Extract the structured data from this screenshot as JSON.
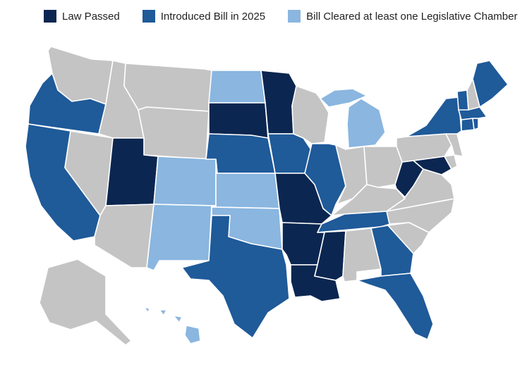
{
  "legend": [
    {
      "label": "Law Passed",
      "status": "law_passed"
    },
    {
      "label": "Introduced Bill in 2025",
      "status": "introduced"
    },
    {
      "label": "Bill Cleared at least one Legislative Chamber",
      "status": "cleared_chamber"
    }
  ],
  "colors": {
    "law_passed": "#0b2650",
    "introduced": "#1f5a99",
    "cleared_chamber": "#8ab6e0",
    "none": "#c4c4c4"
  },
  "states": [
    {
      "abbr": "WA",
      "status": "none"
    },
    {
      "abbr": "OR",
      "status": "introduced"
    },
    {
      "abbr": "CA",
      "status": "introduced"
    },
    {
      "abbr": "NV",
      "status": "none"
    },
    {
      "abbr": "ID",
      "status": "none"
    },
    {
      "abbr": "MT",
      "status": "none"
    },
    {
      "abbr": "WY",
      "status": "none"
    },
    {
      "abbr": "UT",
      "status": "law_passed"
    },
    {
      "abbr": "AZ",
      "status": "none"
    },
    {
      "abbr": "CO",
      "status": "cleared_chamber"
    },
    {
      "abbr": "NM",
      "status": "cleared_chamber"
    },
    {
      "abbr": "ND",
      "status": "cleared_chamber"
    },
    {
      "abbr": "SD",
      "status": "law_passed"
    },
    {
      "abbr": "NE",
      "status": "introduced"
    },
    {
      "abbr": "KS",
      "status": "cleared_chamber"
    },
    {
      "abbr": "OK",
      "status": "cleared_chamber"
    },
    {
      "abbr": "TX",
      "status": "introduced"
    },
    {
      "abbr": "MN",
      "status": "law_passed"
    },
    {
      "abbr": "IA",
      "status": "introduced"
    },
    {
      "abbr": "MO",
      "status": "law_passed"
    },
    {
      "abbr": "AR",
      "status": "law_passed"
    },
    {
      "abbr": "LA",
      "status": "law_passed"
    },
    {
      "abbr": "WI",
      "status": "none"
    },
    {
      "abbr": "IL",
      "status": "introduced"
    },
    {
      "abbr": "MI",
      "status": "cleared_chamber"
    },
    {
      "abbr": "IN",
      "status": "none"
    },
    {
      "abbr": "OH",
      "status": "none"
    },
    {
      "abbr": "KY",
      "status": "none"
    },
    {
      "abbr": "TN",
      "status": "introduced"
    },
    {
      "abbr": "MS",
      "status": "law_passed"
    },
    {
      "abbr": "AL",
      "status": "none"
    },
    {
      "abbr": "GA",
      "status": "introduced"
    },
    {
      "abbr": "FL",
      "status": "introduced"
    },
    {
      "abbr": "SC",
      "status": "none"
    },
    {
      "abbr": "NC",
      "status": "none"
    },
    {
      "abbr": "VA",
      "status": "none"
    },
    {
      "abbr": "WV",
      "status": "law_passed"
    },
    {
      "abbr": "MD",
      "status": "law_passed"
    },
    {
      "abbr": "DE",
      "status": "none"
    },
    {
      "abbr": "PA",
      "status": "none"
    },
    {
      "abbr": "NJ",
      "status": "none"
    },
    {
      "abbr": "NY",
      "status": "introduced"
    },
    {
      "abbr": "CT",
      "status": "introduced"
    },
    {
      "abbr": "RI",
      "status": "introduced"
    },
    {
      "abbr": "MA",
      "status": "introduced"
    },
    {
      "abbr": "VT",
      "status": "introduced"
    },
    {
      "abbr": "NH",
      "status": "none"
    },
    {
      "abbr": "ME",
      "status": "introduced"
    },
    {
      "abbr": "AK",
      "status": "none"
    },
    {
      "abbr": "HI",
      "status": "cleared_chamber"
    }
  ]
}
